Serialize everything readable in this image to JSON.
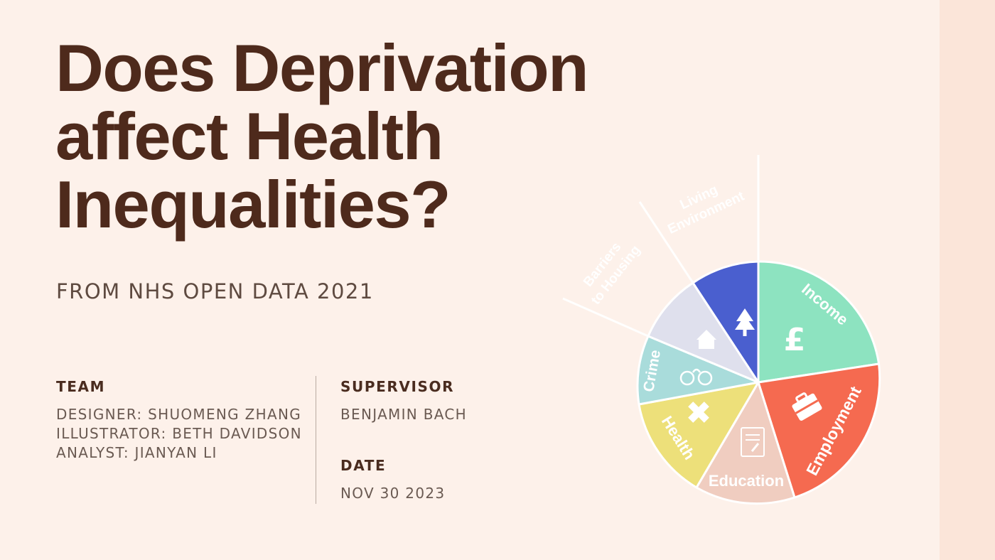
{
  "title": "Does Deprivation affect Health Inequalities?",
  "subtitle": "FROM NHS OPEN DATA 2021",
  "team": {
    "heading": "TEAM",
    "members": [
      "DESIGNER: SHUOMENG ZHANG",
      "ILLUSTRATOR: BETH DAVIDSON",
      "ANALYST: JIANYAN LI"
    ]
  },
  "supervisor": {
    "heading": "SUPERVISOR",
    "name": "BENJAMIN BACH"
  },
  "date": {
    "heading": "DATE",
    "value": "NOV 30 2023"
  },
  "wheel": {
    "labels": {
      "income": "Income",
      "employment": "Employment",
      "education": "Education",
      "health": "Health",
      "crime": "Crime",
      "barriers_line1": "Barriers",
      "barriers_line2": "to Housing",
      "living_line1": "Living",
      "living_line2": "Environment"
    },
    "colors": {
      "income": "#8de3c0",
      "employment": "#f56a50",
      "education": "#f0cdc0",
      "health": "#ede07a",
      "crime": "#a9dcdb",
      "barriers": "#dfe0ed",
      "living": "#4a5fcf",
      "background": "#fdf1ea",
      "title": "#4e2a1c"
    },
    "icons": [
      "pound-icon",
      "briefcase-icon",
      "document-icon",
      "cross-icon",
      "handcuffs-icon",
      "house-icon",
      "tree-icon"
    ]
  }
}
